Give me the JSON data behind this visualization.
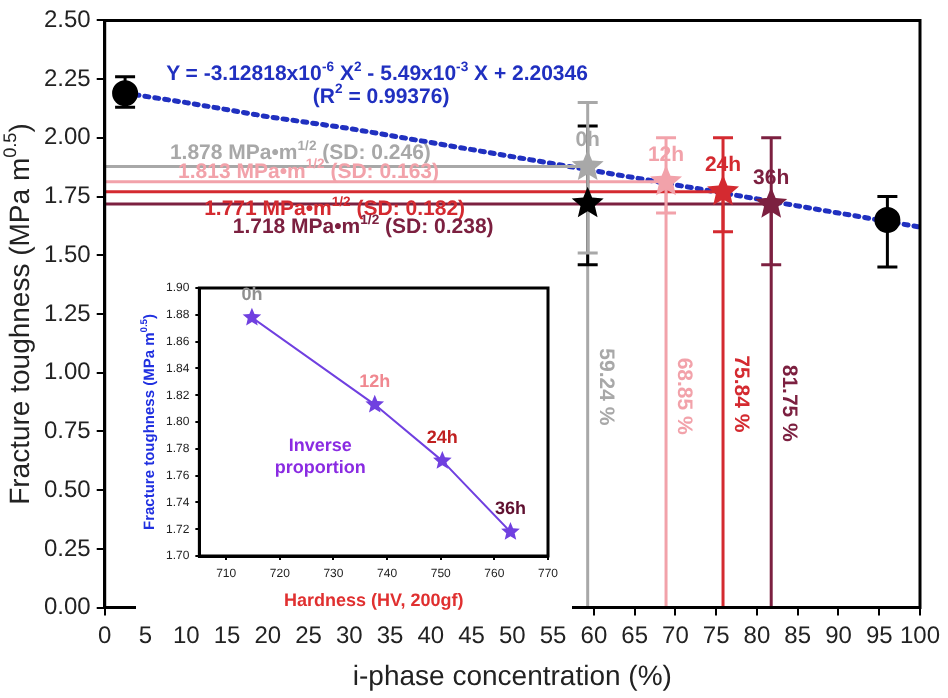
{
  "chart_data": [
    {
      "type": "scatter",
      "xlabel": "i-phase concentration (%)",
      "ylabel": "Fracture toughness (MPa m$^{0.5}$)",
      "xlim": [
        0,
        100
      ],
      "xticks": [
        0,
        5,
        10,
        15,
        20,
        25,
        30,
        35,
        40,
        45,
        50,
        55,
        60,
        65,
        70,
        75,
        80,
        85,
        90,
        95,
        100
      ],
      "ylim": [
        0,
        2.5
      ],
      "yticks": [
        {
          "value": 0,
          "label": "0.00"
        },
        0.25,
        {
          "value": 0.5,
          "label": "0.50"
        },
        0.75,
        {
          "value": 1,
          "label": "1.00"
        },
        1.25,
        {
          "value": 1.5,
          "label": "1.50"
        },
        1.75,
        {
          "value": 2,
          "label": "2.00"
        },
        2.25,
        {
          "value": 2.5,
          "label": "2.50"
        }
      ],
      "series": [
        {
          "type": "line",
          "color": "#2030c0",
          "line_style": "dotted",
          "marker": "none",
          "x": [
            2.5,
            10,
            20,
            30,
            40,
            50,
            60,
            70,
            80,
            90,
            100
          ],
          "values": [
            2.19,
            2.15,
            2.09,
            2.04,
            1.98,
            1.92,
            1.86,
            1.8,
            1.74,
            1.68,
            1.62
          ]
        },
        {
          "type": "line",
          "color": "#a8a8a8",
          "marker": "none",
          "x": [
            0,
            59.24,
            59.24
          ],
          "values": [
            1.878,
            1.878,
            0
          ]
        },
        {
          "type": "line",
          "color": "#f2a2aa",
          "marker": "none",
          "x": [
            0,
            68.85,
            68.85
          ],
          "values": [
            1.813,
            1.813,
            0
          ]
        },
        {
          "type": "line",
          "color": "#d42a30",
          "marker": "none",
          "x": [
            0,
            75.84,
            75.84
          ],
          "values": [
            1.771,
            1.771,
            0
          ]
        },
        {
          "type": "line",
          "color": "#7c2040",
          "marker": "none",
          "x": [
            0,
            81.75,
            81.75
          ],
          "values": [
            1.718,
            1.718,
            0
          ]
        },
        {
          "type": "scatter",
          "color": "#000000",
          "marker": "circle",
          "x": [
            2.5,
            96
          ],
          "values": [
            2.19,
            1.65
          ],
          "errors": [
            [
              2.13,
              2.26
            ],
            [
              1.45,
              1.75
            ]
          ]
        },
        {
          "type": "scatter",
          "color": "#000000",
          "marker": "star",
          "x": [
            59.24
          ],
          "values": [
            1.72
          ],
          "errors": [
            [
              1.46,
              2.05
            ]
          ]
        },
        {
          "type": "scatter",
          "color": "#a8a8a8",
          "marker": "star",
          "x": [
            59.24
          ],
          "values": [
            1.878
          ],
          "errors": [
            [
              1.51,
              2.15
            ]
          ]
        },
        {
          "type": "scatter",
          "color": "#f2a2aa",
          "marker": "star",
          "x": [
            68.85
          ],
          "values": [
            1.813
          ],
          "errors": [
            [
              1.68,
              2.0
            ]
          ]
        },
        {
          "type": "scatter",
          "color": "#d42a30",
          "marker": "star",
          "x": [
            75.84
          ],
          "values": [
            1.771
          ],
          "errors": [
            [
              1.6,
              2.0
            ]
          ]
        },
        {
          "type": "scatter",
          "color": "#7c2040",
          "marker": "star",
          "x": [
            81.75
          ],
          "values": [
            1.718
          ],
          "errors": [
            [
              1.46,
              2.0
            ]
          ]
        }
      ],
      "annotations": [
        "Y = -3.12818x10$^{-6}$ X$^{2}$ - 5.49x10$^{-3}$ X + 2.20346",
        "(R$^{2}$ = 0.99376)",
        "1.878 MPa•m$^{1/2}$ (SD: 0.246)",
        "1.813 MPa•m$^{1/2}$ (SD: 0.163)",
        "1.771 MPa•m$^{1/2}$ (SD: 0.182)",
        "1.718 MPa•m$^{1/2}$ (SD: 0.238)",
        {
          "text": "0h",
          "x": 59.24,
          "y": 1.878
        },
        {
          "text": "12h",
          "x": 68.85,
          "y": 1.813
        },
        {
          "text": "24h",
          "x": 75.84,
          "y": 1.771
        },
        {
          "text": "36h",
          "x": 81.75,
          "y": 1.718
        },
        {
          "text": "59.24 %",
          "x": 59.24,
          "y": 0.94
        },
        {
          "text": "68.85 %",
          "x": 68.85,
          "y": 0.9
        },
        {
          "text": "75.84 %",
          "x": 75.84,
          "y": 0.91
        },
        {
          "text": "81.75 %",
          "x": 81.75,
          "y": 0.87
        }
      ]
    },
    {
      "type": "line",
      "xlabel": "Hardness (HV, 200gf)",
      "ylabel": "Fracture toughness (MPa m$^{0.5}$)",
      "xlim": [
        705,
        770
      ],
      "xticks": [
        710,
        720,
        730,
        740,
        750,
        760,
        770
      ],
      "ylim": [
        1.7,
        1.9
      ],
      "yticks": [
        {
          "value": 1.7,
          "label": "1.70"
        },
        1.72,
        1.74,
        1.76,
        1.78,
        {
          "value": 1.8,
          "label": "1.80"
        },
        1.82,
        1.84,
        1.86,
        1.88,
        {
          "value": 1.9,
          "label": "1.90"
        }
      ],
      "series": [
        {
          "color": "#7040e0",
          "marker": "star",
          "x": [
            714.8,
            737.7,
            750.3,
            763
          ],
          "values": [
            1.878,
            1.813,
            1.771,
            1.718
          ]
        }
      ],
      "annotations": [
        {
          "text": "0h",
          "x": 714.8,
          "y": 1.878
        },
        {
          "text": "12h",
          "x": 737.7,
          "y": 1.813
        },
        {
          "text": "24h",
          "x": 750.3,
          "y": 1.771
        },
        {
          "text": "36h",
          "x": 763,
          "y": 1.718
        },
        "Inverse proportion"
      ]
    }
  ]
}
